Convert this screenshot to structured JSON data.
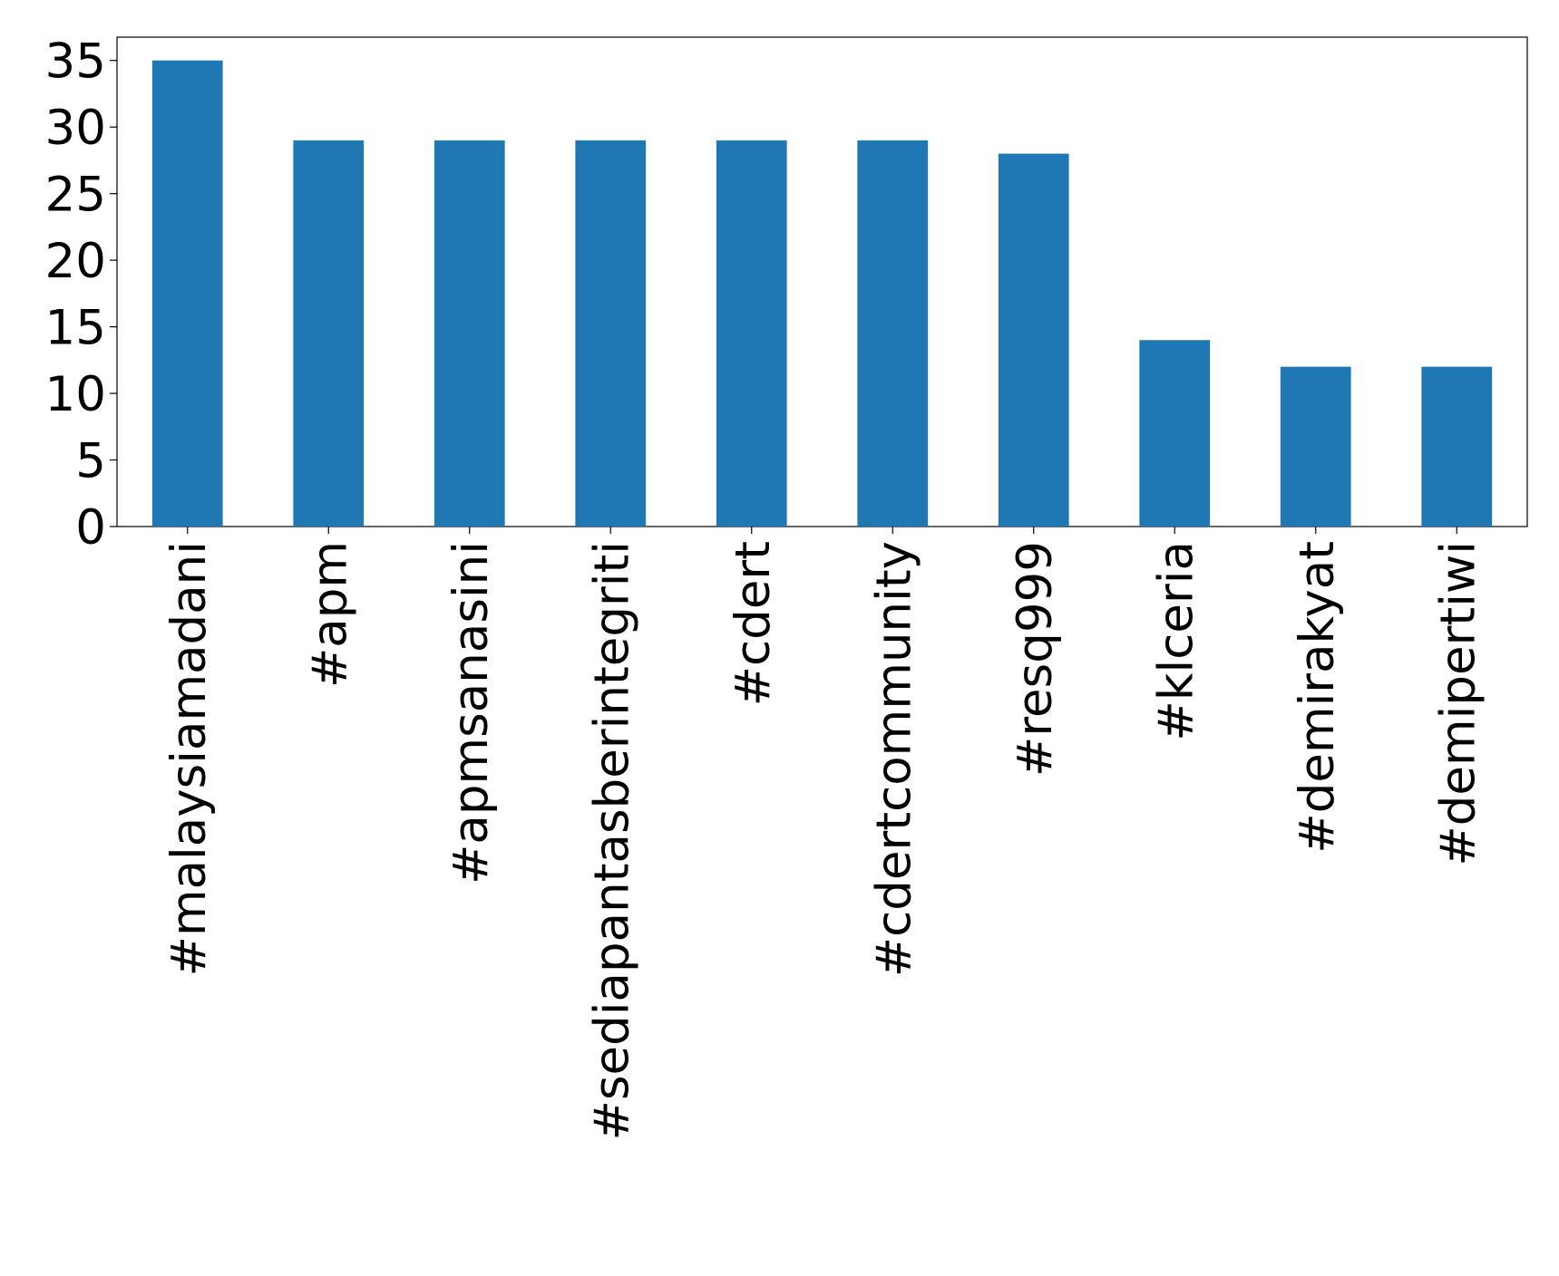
{
  "chart_data": {
    "type": "bar",
    "categories": [
      "#malaysiamadani",
      "#apm",
      "#apmsanasini",
      "#sediapantasberintegriti",
      "#cdert",
      "#cdertcommunity",
      "#resq999",
      "#klceria",
      "#demirakyat",
      "#demipertiwi"
    ],
    "values": [
      35,
      29,
      29,
      29,
      29,
      29,
      28,
      14,
      12,
      12
    ],
    "color": "#1f77b4",
    "ylim": [
      0,
      36.75
    ],
    "yticks": [
      0,
      5,
      10,
      15,
      20,
      25,
      30,
      35
    ],
    "grid": false
  }
}
